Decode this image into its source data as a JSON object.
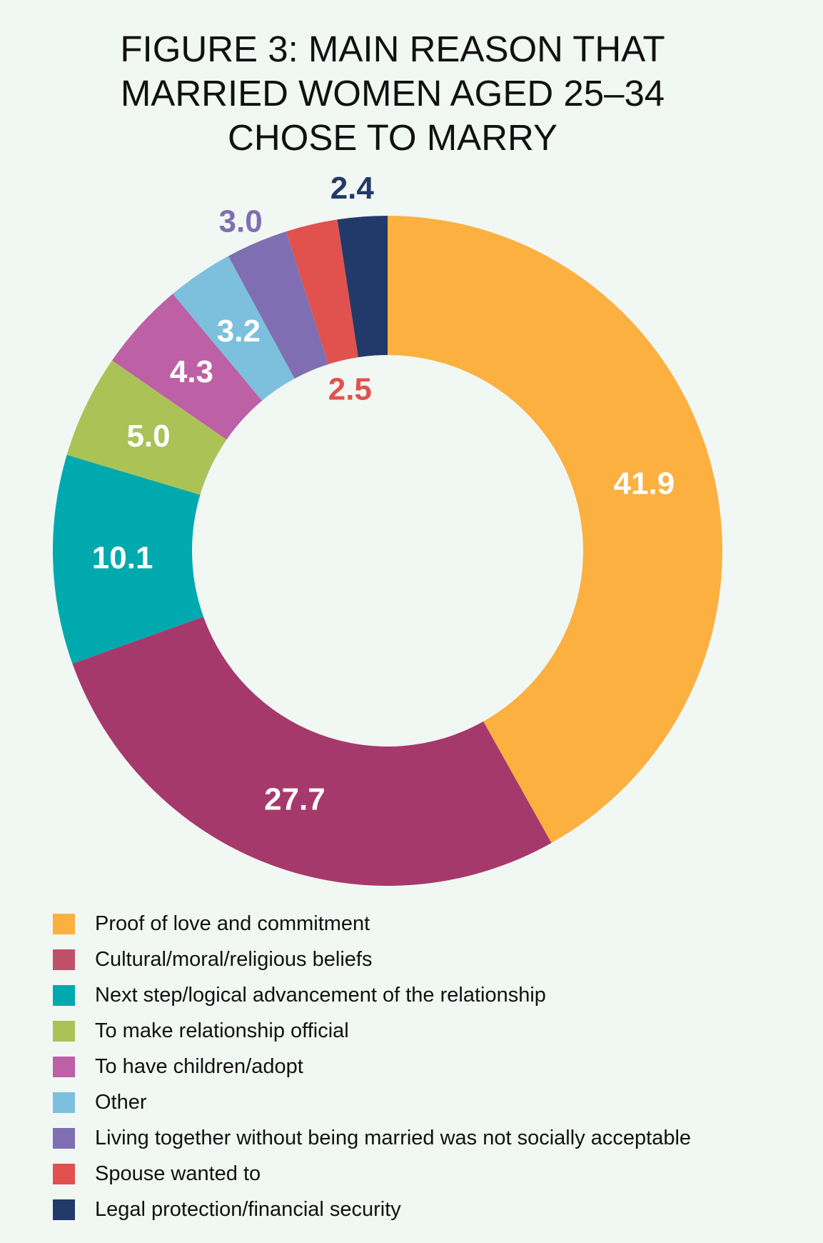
{
  "chart_data": {
    "type": "pie",
    "variant": "donut",
    "title_lines": [
      "FIGURE 3: MAIN REASON THAT",
      "MARRIED WOMEN AGED 25–34",
      "CHOSE TO MARRY"
    ],
    "categories": [
      "Proof of love and commitment",
      "Cultural/moral/religious beliefs",
      "Next step/logical advancement of the relationship",
      "To make relationship official",
      "To have children/adopt",
      "Other",
      "Living together without being married was not socially acceptable",
      "Spouse wanted to",
      "Legal protection/financial security"
    ],
    "values": [
      41.9,
      27.7,
      10.1,
      5.0,
      4.3,
      3.2,
      3.0,
      2.5,
      2.4
    ],
    "data_labels": [
      "41.9",
      "27.7",
      "10.1",
      "5.0",
      "4.3",
      "3.2",
      "3.0",
      "2.5",
      "2.4"
    ],
    "colors": [
      "#fbb040",
      "#a6396b",
      "#00a9ad",
      "#abc257",
      "#bd60a5",
      "#7cc0de",
      "#7f6fb2",
      "#e1514e",
      "#213a69"
    ],
    "legend_colors": [
      "#fbb040",
      "#c0506a",
      "#00a9ad",
      "#abc257",
      "#bd60a5",
      "#7cc0de",
      "#7f6fb2",
      "#e1514e",
      "#213a69"
    ],
    "legend_placement": "bottom",
    "start": "top, clockwise"
  }
}
